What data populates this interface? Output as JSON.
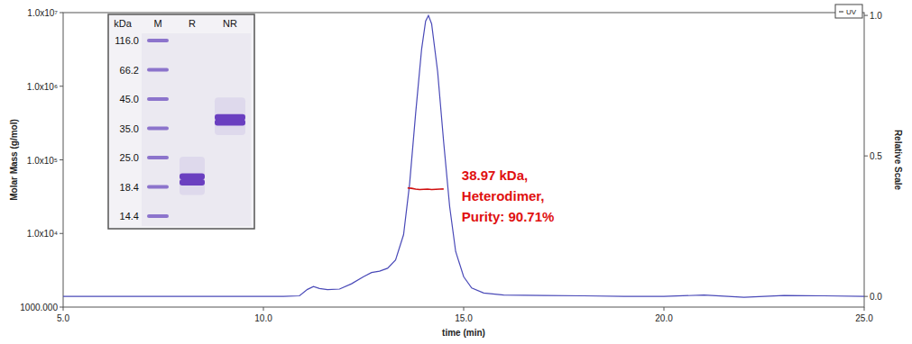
{
  "chart_data": {
    "type": "line",
    "x_label": "time (min)",
    "y_label": "Molar Mass (g/mol)",
    "y2_label": "Relative Scale",
    "log": "y",
    "grid": false,
    "legend": "top-right",
    "xlim": [
      5,
      25
    ],
    "xticks": [
      {
        "value": 5,
        "label": "5.0"
      },
      {
        "value": 10,
        "label": "10.0"
      },
      {
        "value": 15,
        "label": "15.0"
      },
      {
        "value": 20,
        "label": "20.0"
      },
      {
        "value": 25,
        "label": "25.0"
      }
    ],
    "ylim": [
      1000,
      10000000
    ],
    "yticks": [
      {
        "value": 1000,
        "label": "1000.000"
      },
      {
        "value": 10000,
        "label": "1.0x10⁴"
      },
      {
        "value": 100000,
        "label": "1.0x10⁵"
      },
      {
        "value": 1000000,
        "label": "1.0x10⁶"
      },
      {
        "value": 10000000,
        "label": "1.0x10⁷"
      }
    ],
    "y2lim": [
      -0.038,
      1.01
    ],
    "y2ticks": [
      {
        "value": 0,
        "label": "0.0"
      },
      {
        "value": 0.5,
        "label": "0.5"
      },
      {
        "value": 1,
        "label": "1.0"
      }
    ],
    "series": [
      {
        "name": "UV",
        "color": "#4a4ab8",
        "axis": "y2",
        "line_style": "solid",
        "x": [
          5.0,
          10.5,
          10.9,
          11.1,
          11.25,
          11.4,
          11.6,
          11.9,
          12.2,
          12.5,
          12.7,
          12.9,
          13.1,
          13.3,
          13.5,
          13.65,
          13.8,
          13.95,
          14.05,
          14.12,
          14.2,
          14.35,
          14.5,
          14.65,
          14.8,
          15.0,
          15.2,
          15.5,
          16.0,
          17.0,
          18.0,
          19.0,
          20.0,
          21.0,
          22.0,
          22.5,
          23.0,
          24.0,
          25.0
        ],
        "values": [
          0.0,
          0.0,
          0.002,
          0.025,
          0.035,
          0.028,
          0.024,
          0.026,
          0.045,
          0.07,
          0.085,
          0.09,
          0.1,
          0.13,
          0.22,
          0.4,
          0.65,
          0.88,
          0.98,
          1.0,
          0.97,
          0.8,
          0.55,
          0.32,
          0.16,
          0.07,
          0.03,
          0.012,
          0.005,
          0.003,
          0.002,
          0.0,
          0.0,
          0.005,
          -0.003,
          0.0,
          0.003,
          0.002,
          0.0
        ]
      },
      {
        "color": "#d01010",
        "axis": "y",
        "line_style": "solid",
        "x": [
          13.6,
          13.7,
          13.8,
          13.9,
          14.0,
          14.1,
          14.2,
          14.3,
          14.4,
          14.5
        ],
        "values": [
          41500,
          41000,
          40000,
          39500,
          39800,
          40000,
          39500,
          39800,
          40000,
          40200
        ]
      }
    ],
    "annotation": [
      "38.97 kDa,",
      "Heterodimer,",
      "Purity: 90.71%"
    ],
    "gel": {
      "unit_label": "kDa",
      "markers": {
        "label": "M",
        "values": [
          {
            "value": 116,
            "label": "116.0"
          },
          {
            "value": 66.2,
            "label": "66.2"
          },
          {
            "value": 45,
            "label": "45.0"
          },
          {
            "value": 35,
            "label": "35.0"
          },
          {
            "value": 25,
            "label": "25.0"
          },
          {
            "value": 18.4,
            "label": "18.4"
          },
          {
            "value": 14.4,
            "label": "14.4"
          }
        ]
      },
      "lanes": [
        {
          "label": "R",
          "bands": [
            20.5,
            19.3
          ]
        },
        {
          "label": "NR",
          "bands": [
            38.5,
            36.8
          ]
        }
      ]
    }
  }
}
